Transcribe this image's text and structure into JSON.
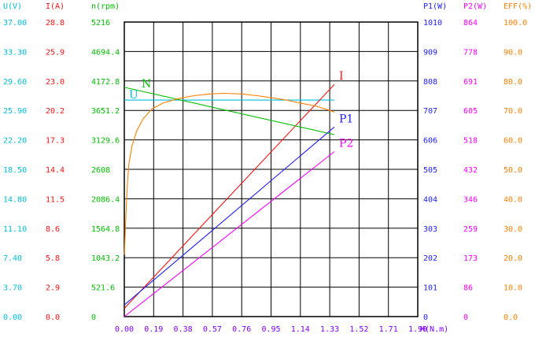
{
  "chart_data": {
    "type": "line",
    "title": "",
    "colors": {
      "U": "#00bfdf",
      "I": "#ff1010",
      "N": "#00c000",
      "P1": "#2020ff",
      "P2": "#ff00ff",
      "EFF": "#ff8000",
      "x_axis": "#8000ff",
      "grid": "#000000"
    },
    "x_axis": {
      "label": "M(N.m)",
      "range": [
        0,
        1.9
      ],
      "ticks": [
        "0.00",
        "0.19",
        "0.38",
        "0.57",
        "0.76",
        "0.95",
        "1.14",
        "1.33",
        "1.52",
        "1.71",
        "1.90"
      ]
    },
    "y_axes": [
      {
        "key": "U",
        "header": "U(V)",
        "range": [
          0,
          37
        ],
        "ticks": [
          "0.00",
          "3.70",
          "7.40",
          "11.10",
          "14.80",
          "18.50",
          "22.20",
          "25.90",
          "29.60",
          "33.30",
          "37.00"
        ]
      },
      {
        "key": "I",
        "header": "I(A)",
        "range": [
          0,
          28.8
        ],
        "ticks": [
          "0.0",
          "2.9",
          "5.8",
          "8.6",
          "11.5",
          "14.4",
          "17.3",
          "20.2",
          "23.0",
          "25.9",
          "28.8"
        ]
      },
      {
        "key": "N",
        "header": "n(rpm)",
        "range": [
          0,
          5216
        ],
        "ticks": [
          "0",
          "521.6",
          "1043.2",
          "1564.8",
          "2086.4",
          "2608",
          "3129.6",
          "3651.2",
          "4172.8",
          "4694.4",
          "5216"
        ]
      },
      {
        "key": "P1",
        "header": "P1(W)",
        "range": [
          0,
          1010
        ],
        "ticks": [
          "0",
          "101",
          "202",
          "303",
          "404",
          "505",
          "606",
          "707",
          "808",
          "909",
          "1010"
        ]
      },
      {
        "key": "P2",
        "header": "P2(W)",
        "range": [
          0,
          864
        ],
        "ticks": [
          "0",
          "86",
          "173",
          "259",
          "346",
          "432",
          "518",
          "605",
          "691",
          "778",
          "864"
        ]
      },
      {
        "key": "EFF",
        "header": "EFF(%)",
        "range": [
          0,
          100
        ],
        "ticks": [
          "0.0",
          "10.0",
          "20.0",
          "30.0",
          "40.0",
          "50.0",
          "60.0",
          "70.0",
          "80.0",
          "90.0",
          "100.0"
        ]
      }
    ],
    "series": [
      {
        "key": "U",
        "name": "U",
        "label_at": [
          0,
          0.3
        ],
        "points": [
          [
            0.0,
            27.2
          ],
          [
            1.36,
            27.2
          ]
        ]
      },
      {
        "key": "I",
        "name": "I",
        "label_at": [
          1.37,
          0.3
        ],
        "points": [
          [
            0.0,
            0.8
          ],
          [
            1.36,
            22.7
          ]
        ]
      },
      {
        "key": "N",
        "name": "N",
        "label_at": [
          0.18,
          0.4
        ],
        "points": [
          [
            0.0,
            4060
          ],
          [
            1.36,
            3222
          ]
        ]
      },
      {
        "key": "P1",
        "name": "P1",
        "label_at": [
          1.37,
          0.3
        ],
        "points": [
          [
            0.0,
            40
          ],
          [
            1.36,
            650
          ]
        ]
      },
      {
        "key": "P2",
        "name": "P2",
        "label_at": [
          1.37,
          0.4
        ],
        "points": [
          [
            0.0,
            0
          ],
          [
            1.36,
            484
          ]
        ]
      },
      {
        "key": "EFF",
        "name": "",
        "points": [
          [
            0.0,
            21
          ],
          [
            0.01,
            34
          ],
          [
            0.02,
            45
          ],
          [
            0.03,
            52
          ],
          [
            0.05,
            58
          ],
          [
            0.08,
            63
          ],
          [
            0.12,
            67
          ],
          [
            0.18,
            70.5
          ],
          [
            0.25,
            72.5
          ],
          [
            0.35,
            74
          ],
          [
            0.45,
            75
          ],
          [
            0.55,
            75.6
          ],
          [
            0.65,
            75.8
          ],
          [
            0.76,
            75.6
          ],
          [
            0.86,
            75
          ],
          [
            0.95,
            74.3
          ],
          [
            1.05,
            73.5
          ],
          [
            1.14,
            72.5
          ],
          [
            1.24,
            71.5
          ],
          [
            1.33,
            70
          ],
          [
            1.36,
            69.4
          ]
        ]
      }
    ]
  }
}
